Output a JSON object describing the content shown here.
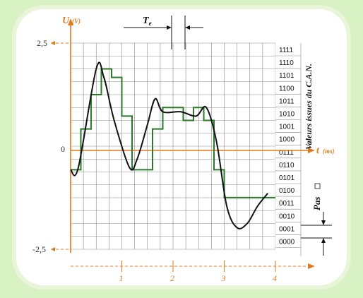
{
  "chart_data": {
    "type": "line",
    "title": "",
    "y_axis": {
      "label": "U",
      "unit": "(V)",
      "min": -2.5,
      "max": 2.5,
      "tick_labels": [
        "2,5",
        "0",
        "-2,5"
      ]
    },
    "x_axis": {
      "label": "t",
      "unit": "(ms)",
      "tick_labels": [
        "1",
        "2",
        "3",
        "4"
      ],
      "range": [
        0,
        4
      ]
    },
    "te_label": "Te",
    "pas_label": "Pas",
    "codes_label": "Valeurs issues du C.A.N.",
    "binary_codes": [
      "1111",
      "1110",
      "1101",
      "1100",
      "1011",
      "1010",
      "1001",
      "1000",
      "0111",
      "0110",
      "0101",
      "0100",
      "0011",
      "0010",
      "0001",
      "0000"
    ],
    "analog_signal": {
      "t": [
        0,
        0.15,
        0.5,
        0.65,
        0.85,
        1.15,
        1.3,
        1.5,
        1.65,
        1.8,
        2.15,
        2.45,
        2.65,
        2.85,
        3.05,
        3.25,
        3.45,
        3.65,
        3.85
      ],
      "u": [
        -0.45,
        -0.4,
        1.9,
        1.7,
        0.7,
        -0.4,
        -0.2,
        0.6,
        1.2,
        0.9,
        0.9,
        0.8,
        1.0,
        0.2,
        -1.3,
        -1.8,
        -1.7,
        -1.3,
        -1.0
      ]
    },
    "quantized_signal": {
      "t": [
        0,
        0.2,
        0.4,
        0.6,
        0.8,
        1.0,
        1.2,
        1.4,
        1.6,
        1.8,
        2.0,
        2.2,
        2.4,
        2.6,
        2.8,
        3.0,
        3.2,
        3.4,
        3.6,
        3.8
      ],
      "u": [
        -0.45,
        0.5,
        1.3,
        1.9,
        1.7,
        0.8,
        -0.45,
        -0.45,
        0.5,
        1.0,
        1.0,
        0.7,
        1.0,
        0.7,
        -0.45,
        -1.1,
        -1.1,
        -1.1,
        -1.1,
        -1.1
      ]
    },
    "grid": true,
    "colors": {
      "axes": "#e07a1f",
      "analog": "#111111",
      "quantized": "#2a7a2a",
      "grid": "#888888"
    }
  }
}
